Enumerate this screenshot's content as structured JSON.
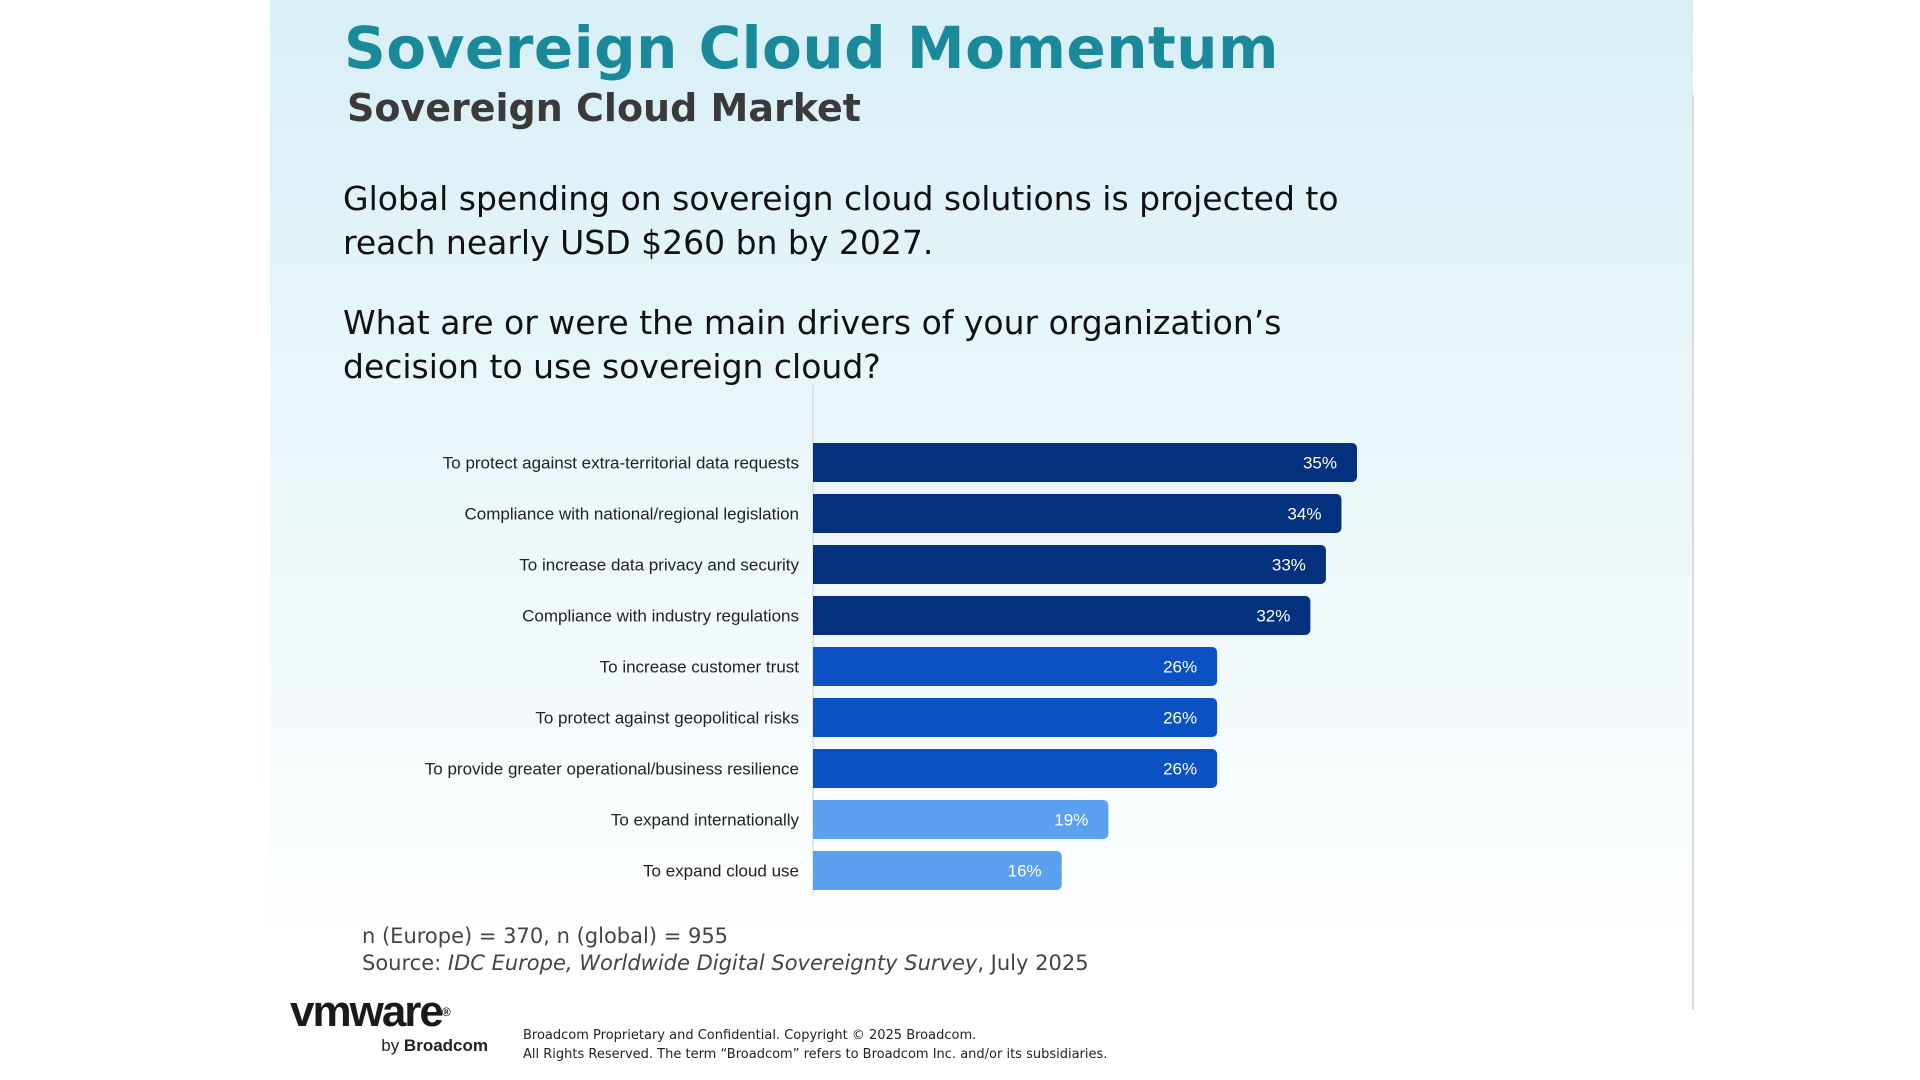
{
  "slide": {
    "title": "Sovereign Cloud Momentum",
    "subtitle": "Sovereign Cloud Market",
    "headline_1": "Global spending on sovereign cloud solutions is projected to reach nearly USD $260 bn by 2027.",
    "headline_2": "What are or were the main drivers of your organization’s decision to use sovereign cloud?",
    "sample_note": "n (Europe) = 370, n (global) = 955",
    "source_prefix": "Source: ",
    "source_title": "IDC Europe, Worldwide Digital Sovereignty Survey",
    "source_suffix": ", July 2025"
  },
  "chart_data": {
    "type": "bar",
    "orientation": "horizontal",
    "categories": [
      "To protect against extra-territorial data requests",
      "Compliance with national/regional legislation",
      "To increase data privacy and security",
      "Compliance with industry regulations",
      "To increase customer trust",
      "To protect against geopolitical risks",
      "To provide greater operational/business resilience",
      "To expand internationally",
      "To expand cloud use"
    ],
    "values": [
      35,
      34,
      33,
      32,
      26,
      26,
      26,
      19,
      16
    ],
    "labels": [
      "35%",
      "34%",
      "33%",
      "32%",
      "26%",
      "26%",
      "26%",
      "19%",
      "16%"
    ],
    "value_unit": "%",
    "xlim": [
      0,
      35
    ],
    "grid": false,
    "colors": [
      "#04317e",
      "#04317e",
      "#04317e",
      "#04317e",
      "#0a52c3",
      "#0a52c3",
      "#0a52c3",
      "#5ca0f1",
      "#5ca0f1"
    ]
  },
  "footer": {
    "logo_main": "vmware",
    "logo_reg": "®",
    "logo_by": "by ",
    "logo_brand": "Broadcom",
    "legal_line_1": "Broadcom Proprietary and Confidential. Copyright © 2025 Broadcom.",
    "legal_line_2": "All Rights Reserved. The term “Broadcom” refers to Broadcom Inc. and/or its subsidiaries."
  }
}
